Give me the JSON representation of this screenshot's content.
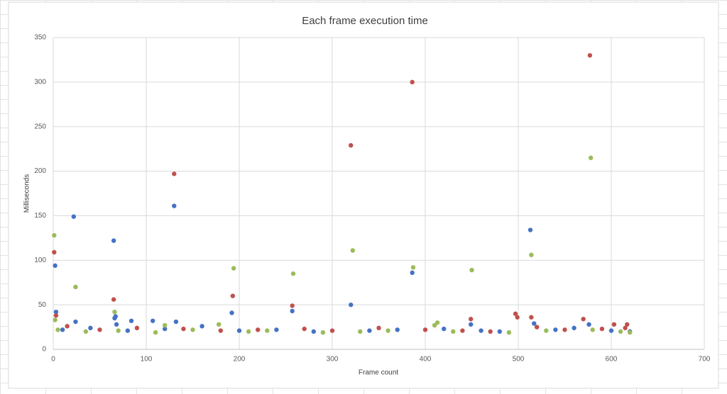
{
  "chart_data": {
    "type": "scatter",
    "title": "Each frame execution time",
    "x_label": "Frame count",
    "y_label": "Milliseconds",
    "xlim": [
      0,
      700
    ],
    "xticks": [
      0,
      100,
      200,
      300,
      400,
      500,
      600,
      700
    ],
    "ylim": [
      0,
      350
    ],
    "yticks": [
      0,
      50,
      100,
      150,
      200,
      250,
      300,
      350
    ],
    "grid": true,
    "series": [
      {
        "color": "#4472c4",
        "x": [
          2,
          3,
          22,
          24,
          65,
          66,
          67,
          68,
          84,
          107,
          130,
          132,
          192,
          257,
          320,
          386,
          449,
          513,
          517,
          576,
          10,
          40,
          80,
          120,
          160,
          200,
          240,
          280,
          340,
          370,
          420,
          460,
          480,
          540,
          560,
          600,
          620
        ],
        "values": [
          94,
          42,
          149,
          31,
          122,
          35,
          37,
          28,
          32,
          32,
          161,
          31,
          41,
          43,
          50,
          86,
          28,
          134,
          29,
          28,
          22,
          24,
          21,
          23,
          26,
          21,
          22,
          20,
          21,
          22,
          23,
          21,
          20,
          22,
          24,
          21,
          20
        ]
      },
      {
        "color": "#c0504d",
        "x": [
          1,
          3,
          65,
          130,
          193,
          257,
          320,
          386,
          449,
          497,
          499,
          514,
          570,
          577,
          603,
          617,
          15,
          50,
          90,
          140,
          180,
          220,
          270,
          300,
          350,
          400,
          440,
          470,
          520,
          550,
          590,
          615
        ],
        "values": [
          109,
          38,
          56,
          197,
          60,
          49,
          229,
          300,
          34,
          40,
          36,
          36,
          34,
          330,
          28,
          28,
          26,
          22,
          24,
          23,
          21,
          22,
          23,
          21,
          24,
          22,
          21,
          20,
          25,
          22,
          23,
          24
        ]
      },
      {
        "color": "#9bbb59",
        "x": [
          1,
          2,
          24,
          66,
          120,
          178,
          194,
          258,
          322,
          387,
          410,
          413,
          450,
          514,
          578,
          5,
          35,
          70,
          110,
          150,
          210,
          230,
          290,
          330,
          360,
          430,
          490,
          530,
          580,
          610,
          620
        ],
        "values": [
          128,
          33,
          70,
          42,
          27,
          28,
          91,
          85,
          111,
          92,
          27,
          30,
          89,
          106,
          215,
          22,
          20,
          21,
          19,
          22,
          20,
          21,
          19,
          20,
          21,
          20,
          19,
          21,
          22,
          20,
          19
        ]
      }
    ]
  }
}
